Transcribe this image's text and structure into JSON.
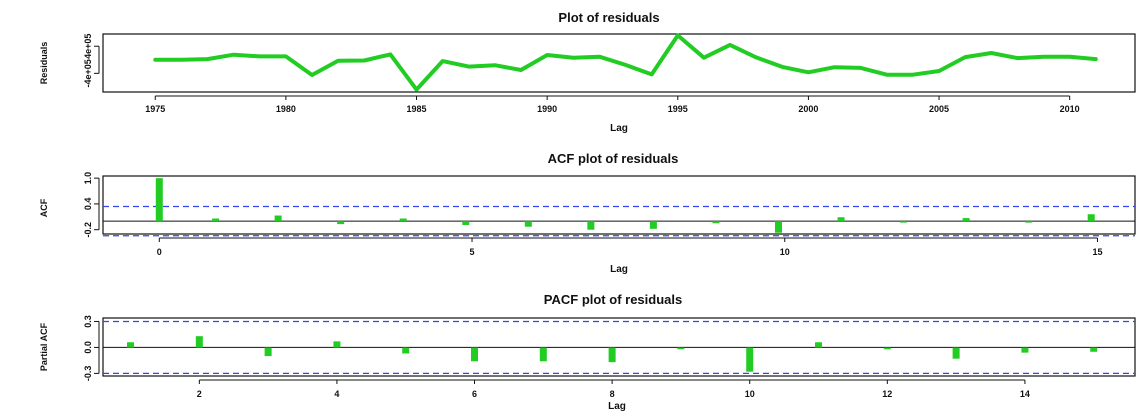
{
  "chart_data": [
    {
      "type": "line",
      "title": "Plot of residuals",
      "xlabel": "Lag",
      "ylabel": "Residuals",
      "x": [
        1975,
        1976,
        1977,
        1978,
        1979,
        1980,
        1981,
        1982,
        1983,
        1984,
        1985,
        1986,
        1987,
        1988,
        1989,
        1990,
        1991,
        1992,
        1993,
        1994,
        1995,
        1996,
        1997,
        1998,
        1999,
        2000,
        2001,
        2002,
        2003,
        2004,
        2005,
        2006,
        2007,
        2008,
        2009,
        2010,
        2011
      ],
      "values": [
        0,
        0,
        20000,
        150000,
        100000,
        100000,
        -450000,
        -30000,
        -20000,
        160000,
        -880000,
        -40000,
        -200000,
        -160000,
        -300000,
        140000,
        60000,
        90000,
        -150000,
        -430000,
        720000,
        60000,
        440000,
        70000,
        -210000,
        -370000,
        -220000,
        -240000,
        -440000,
        -440000,
        -330000,
        80000,
        200000,
        50000,
        90000,
        90000,
        20000
      ],
      "xticks": [
        "1975",
        "1980",
        "1985",
        "1990",
        "1995",
        "2000",
        "2005",
        "2010"
      ],
      "yticks": [
        "-4e+05",
        "4e+05"
      ],
      "xlim": [
        1973,
        2012.5
      ],
      "ylim": [
        -950000,
        760000
      ],
      "color": "#22cc22"
    },
    {
      "type": "bar",
      "title": "ACF plot of residuals",
      "xlabel": "Lag",
      "ylabel": "ACF",
      "x": [
        0,
        0.9,
        1.9,
        2.9,
        3.9,
        4.9,
        5.9,
        6.9,
        7.9,
        8.9,
        9.9,
        10.9,
        11.9,
        12.9,
        13.9,
        14.9
      ],
      "values": [
        1.0,
        0.06,
        0.13,
        -0.07,
        0.06,
        -0.09,
        -0.13,
        -0.2,
        -0.18,
        -0.05,
        -0.27,
        0.09,
        -0.02,
        0.07,
        -0.01,
        0.16
      ],
      "ci": 0.34,
      "xticks": [
        "0",
        "5",
        "10",
        "15"
      ],
      "yticks": [
        "-0.2",
        "0.4",
        "1.0"
      ],
      "xlim": [
        -0.9,
        15.6
      ],
      "ylim": [
        -0.3,
        1.05
      ],
      "color": "#22cc22",
      "ci_color": "#3344ee"
    },
    {
      "type": "bar",
      "title": "PACF plot of residuals",
      "xlabel": "Lag",
      "ylabel": "Partial ACF",
      "x": [
        1,
        2,
        3,
        4,
        5,
        6,
        7,
        8,
        9,
        10,
        11,
        12,
        13,
        14,
        15
      ],
      "values": [
        0.06,
        0.13,
        -0.1,
        0.07,
        -0.07,
        -0.16,
        -0.16,
        -0.17,
        -0.02,
        -0.28,
        0.06,
        -0.02,
        -0.13,
        -0.06,
        -0.05
      ],
      "ci": 0.3,
      "xticks": [
        "2",
        "4",
        "6",
        "8",
        "10",
        "12",
        "14"
      ],
      "yticks": [
        "-0.3",
        "0.0",
        "0.3"
      ],
      "xlim": [
        0.6,
        15.6
      ],
      "ylim": [
        -0.33,
        0.34
      ],
      "color": "#22cc22",
      "ci_color": "#3344ee"
    }
  ]
}
